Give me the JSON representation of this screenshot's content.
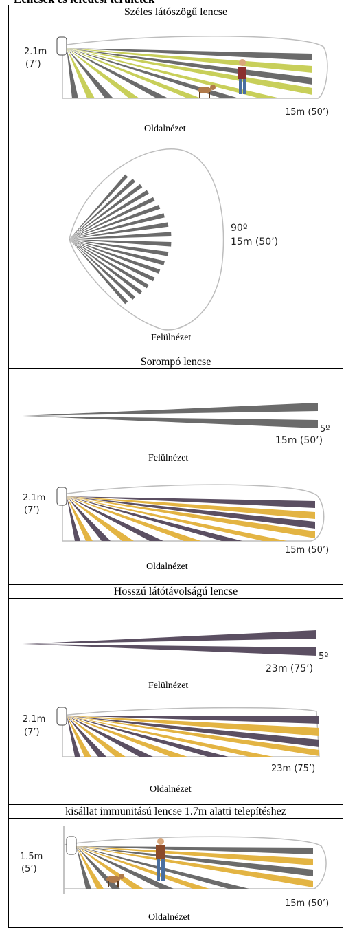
{
  "title": "Lencsék és lefedési területek",
  "sections": [
    {
      "heading": "Széles látószögű lencse",
      "side_height_m": "2.1m",
      "side_height_ft": "(7’)",
      "side_range": "15m (50’)",
      "side_caption": "Oldalnézet",
      "top_angle": "90º",
      "top_range": "15m (50’)",
      "top_caption": "Felülnézet"
    },
    {
      "heading": "Sorompó lencse",
      "top_angle": "5º",
      "top_range": "15m (50’)",
      "top_caption": "Felülnézet",
      "side_height_m": "2.1m",
      "side_height_ft": "(7’)",
      "side_range": "15m (50’)",
      "side_caption": "Oldalnézet"
    },
    {
      "heading": "Hosszú látótávolságú lencse",
      "top_angle": "5º",
      "top_range": "23m (75’)",
      "top_caption": "Felülnézet",
      "side_height_m": "2.1m",
      "side_height_ft": "(7’)",
      "side_range": "23m (75’)",
      "side_caption": "Oldalnézet"
    },
    {
      "heading": "kisállat immunitású lencse 1.7m alatti telepítéshez",
      "side_height_m": "1.5m",
      "side_height_ft": "(5’)",
      "side_range": "15m (50’)",
      "side_caption": "Oldalnézet"
    }
  ],
  "colors": {
    "gray_beam": "#6b6b6b",
    "yellow_green_beam": "#c8cf5a",
    "purple_beam": "#5b4f62",
    "gold_beam": "#e3b443",
    "outline": "#bdbdbd"
  }
}
